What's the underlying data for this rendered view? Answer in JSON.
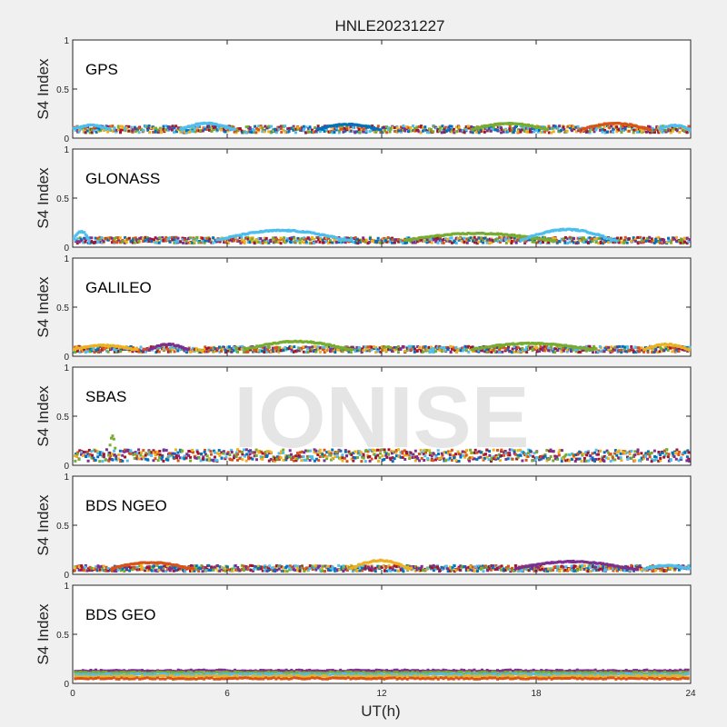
{
  "chart_data": {
    "type": "scatter",
    "title": "HNLE20231227",
    "xlabel": "UT(h)",
    "ylabel": "S4 Index",
    "xlim": [
      0,
      24
    ],
    "ylim": [
      0,
      1
    ],
    "xticks": [
      0,
      6,
      12,
      18,
      24
    ],
    "xtick_labels": [
      "0",
      "6",
      "12",
      "18",
      "24"
    ],
    "yticks": [
      0,
      0.5,
      1
    ],
    "ytick_labels": [
      "0",
      "0.5",
      "1"
    ],
    "watermark": "IONISE",
    "grid": false,
    "series_colors": [
      "#0072bd",
      "#d95319",
      "#edb120",
      "#7e2f8e",
      "#77ac30",
      "#4dbeee",
      "#a2142f"
    ],
    "panels": [
      {
        "label": "GPS",
        "baseline": 0.09,
        "spread": 0.035,
        "bumps": [
          {
            "x0": 0,
            "x1": 1.5,
            "y": 0.13,
            "c": 5
          },
          {
            "x0": 4.2,
            "x1": 6.3,
            "y": 0.15,
            "c": 5
          },
          {
            "x0": 9.5,
            "x1": 12,
            "y": 0.14,
            "c": 0
          },
          {
            "x0": 15.5,
            "x1": 18.5,
            "y": 0.15,
            "c": 4
          },
          {
            "x0": 19.8,
            "x1": 22.5,
            "y": 0.15,
            "c": 1
          },
          {
            "x0": 22.8,
            "x1": 24,
            "y": 0.13,
            "c": 5
          }
        ]
      },
      {
        "label": "GLONASS",
        "baseline": 0.07,
        "spread": 0.03,
        "bumps": [
          {
            "x0": 0,
            "x1": 0.7,
            "y": 0.16,
            "c": 5
          },
          {
            "x0": 5.6,
            "x1": 10.9,
            "y": 0.17,
            "c": 5
          },
          {
            "x0": 12.9,
            "x1": 18.8,
            "y": 0.14,
            "c": 4
          },
          {
            "x0": 17.4,
            "x1": 21.2,
            "y": 0.18,
            "c": 5
          }
        ]
      },
      {
        "label": "GALILEO",
        "baseline": 0.07,
        "spread": 0.03,
        "bumps": [
          {
            "x0": 0,
            "x1": 2.5,
            "y": 0.11,
            "c": 2
          },
          {
            "x0": 3,
            "x1": 4.5,
            "y": 0.12,
            "c": 3
          },
          {
            "x0": 6.7,
            "x1": 10.9,
            "y": 0.15,
            "c": 4
          },
          {
            "x0": 15.5,
            "x1": 20.3,
            "y": 0.13,
            "c": 4
          },
          {
            "x0": 22.2,
            "x1": 24,
            "y": 0.12,
            "c": 2
          }
        ]
      },
      {
        "label": "SBAS",
        "baseline": 0.1,
        "spread": 0.06,
        "bumps": [
          {
            "x0": 1.4,
            "x1": 1.7,
            "y": 0.3,
            "c": 4
          }
        ]
      },
      {
        "label": "BDS NGEO",
        "baseline": 0.06,
        "spread": 0.03,
        "bumps": [
          {
            "x0": 1.5,
            "x1": 4.7,
            "y": 0.12,
            "c": 1
          },
          {
            "x0": 10.8,
            "x1": 13.2,
            "y": 0.14,
            "c": 2
          },
          {
            "x0": 17.2,
            "x1": 21.8,
            "y": 0.13,
            "c": 3
          },
          {
            "x0": 22.3,
            "x1": 24,
            "y": 0.09,
            "c": 5
          }
        ]
      },
      {
        "label": "BDS GEO",
        "baseline": 0.08,
        "spread": 0.0,
        "bumps": [],
        "levels": [
          {
            "y": 0.13,
            "c": 3
          },
          {
            "y": 0.11,
            "c": 4
          },
          {
            "y": 0.09,
            "c": 5
          },
          {
            "y": 0.07,
            "c": 2
          },
          {
            "y": 0.05,
            "c": 1
          }
        ]
      }
    ]
  }
}
